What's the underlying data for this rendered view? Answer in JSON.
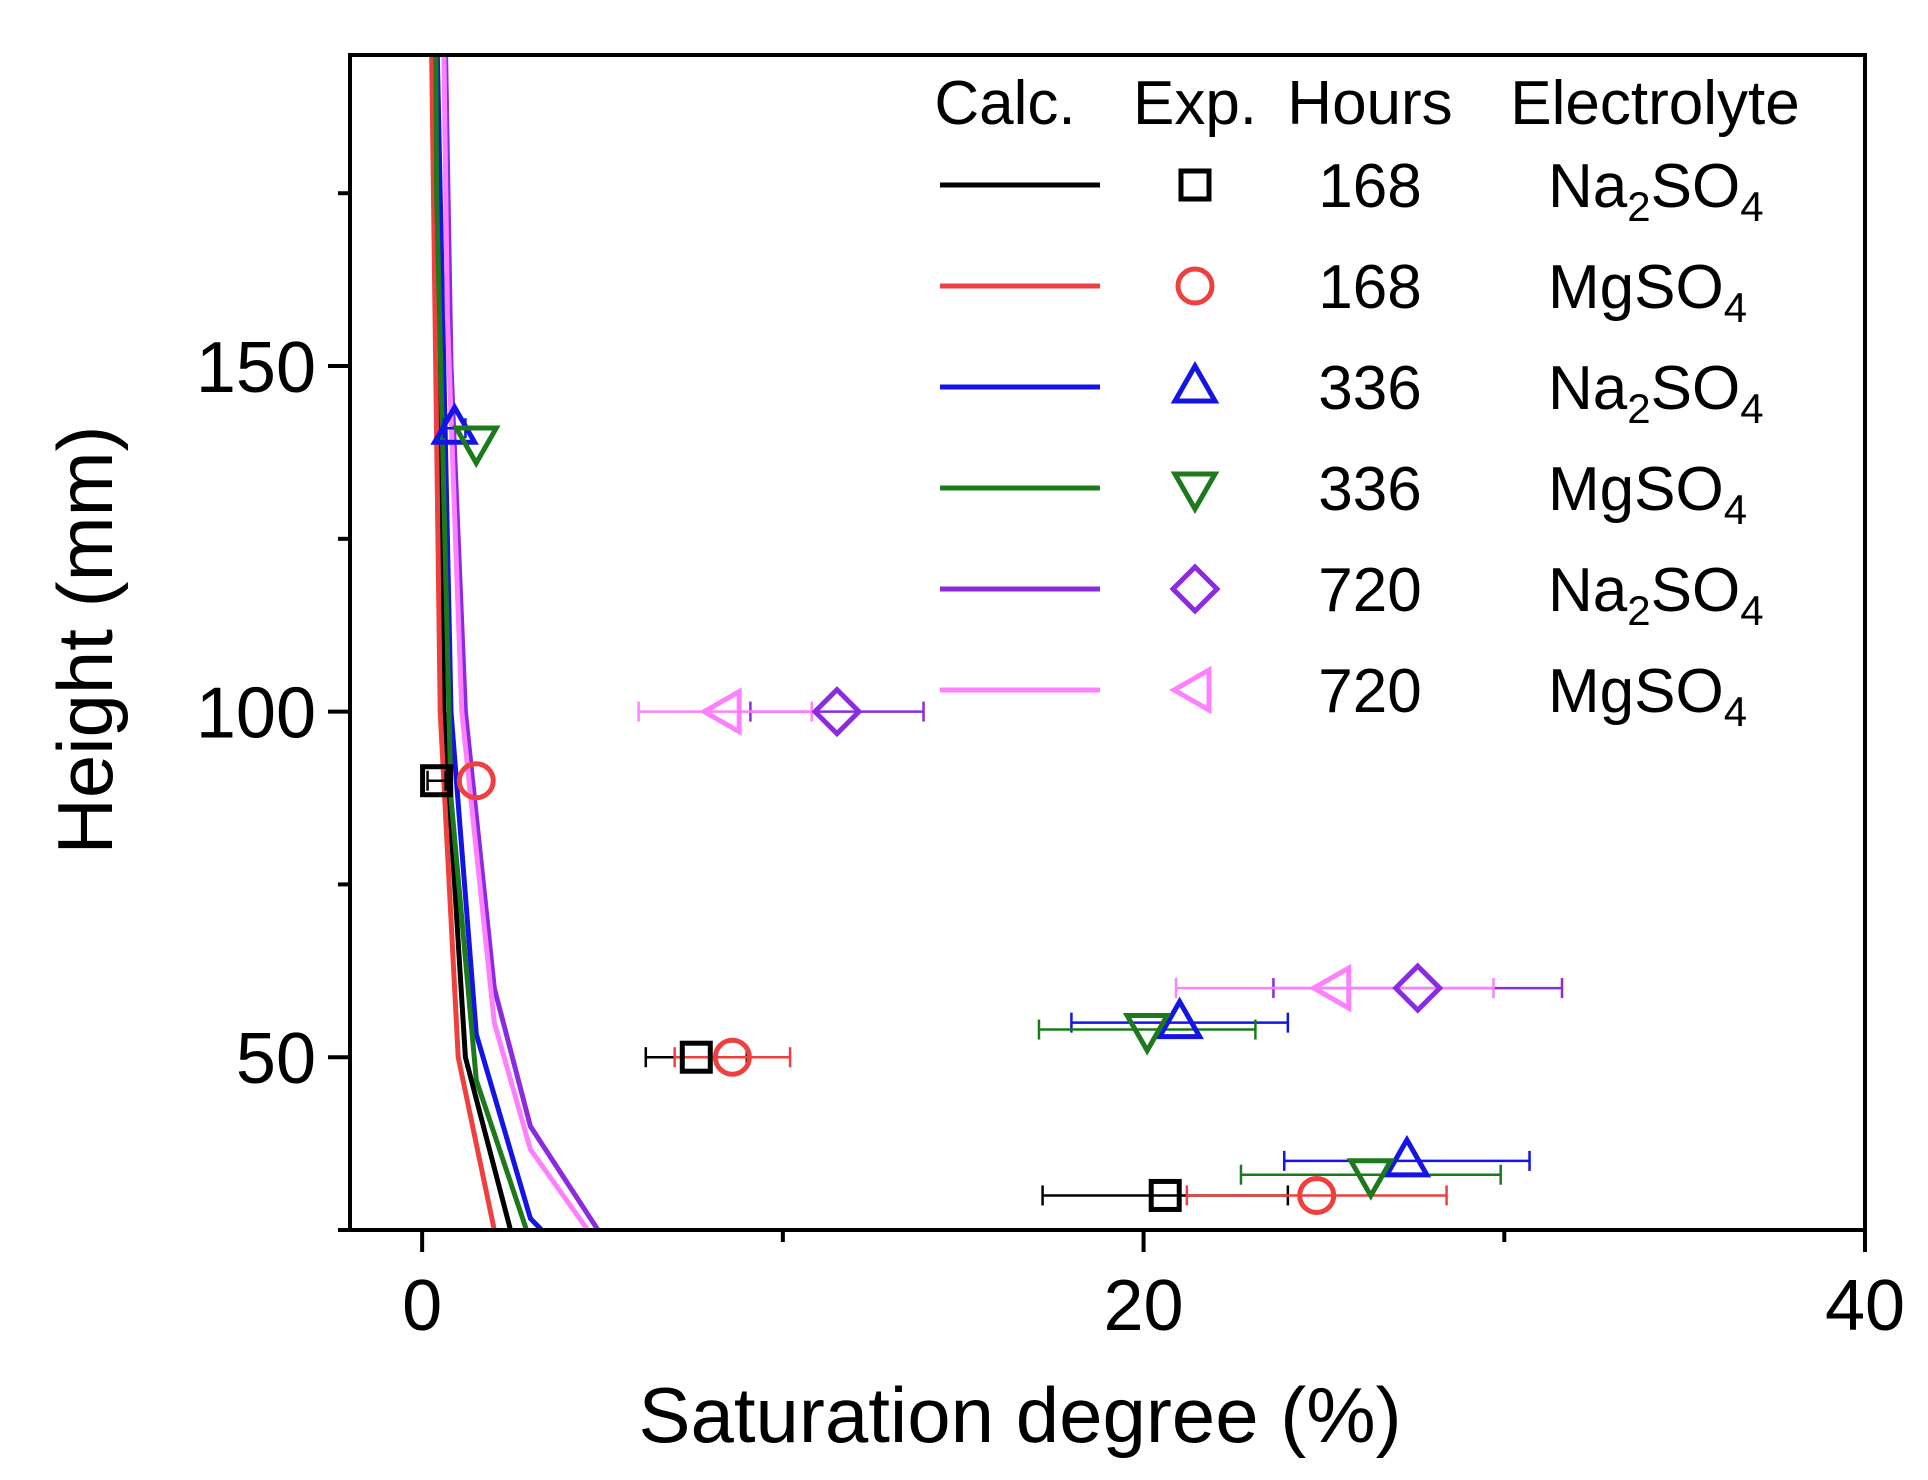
{
  "chart_data": {
    "type": "line",
    "title": "",
    "xlabel": "Saturation degree  (%)",
    "ylabel": "Height  (mm)",
    "xlim": [
      -2,
      40
    ],
    "ylim": [
      25,
      195
    ],
    "x_ticks": [
      0,
      20,
      40
    ],
    "x_tick_labels": [
      "0",
      "20",
      "40"
    ],
    "x_minor_ticks": [
      10,
      30
    ],
    "y_ticks": [
      50,
      100,
      150
    ],
    "y_tick_labels": [
      "50",
      "100",
      "150"
    ],
    "y_minor_ticks": [
      25,
      75,
      125,
      175
    ],
    "grid": false,
    "legend": {
      "position": "top-right",
      "headers": [
        "Calc.",
        "Exp.",
        "Hours",
        "Electrolyte"
      ]
    },
    "series": [
      {
        "name": "168 h Na2SO4",
        "hours": "168",
        "electrolyte": "Na",
        "electrolyte_sub": "2",
        "electrolyte_rest": "SO",
        "electrolyte_sub2": "4",
        "color": "#000000",
        "marker": "square",
        "curve_a": 0.6,
        "curve_x": [
          0.04,
          0.08,
          0.15,
          0.3,
          0.6,
          1.2,
          2.5,
          5,
          8,
          12,
          16,
          20,
          25,
          30,
          35,
          38.0
        ],
        "points": [
          {
            "x": 0.4,
            "y": 90,
            "xerr": 0.25
          },
          {
            "x": 7.6,
            "y": 50,
            "xerr": 1.4
          },
          {
            "x": 20.6,
            "y": 30,
            "xerr": 3.4
          }
        ]
      },
      {
        "name": "168 h MgSO4",
        "hours": "168",
        "electrolyte": "MgSO",
        "electrolyte_sub": "4",
        "electrolyte_rest": "",
        "electrolyte_sub2": "",
        "color": "#ef4040",
        "marker": "circle",
        "curve_a": 0.5,
        "curve_x": [
          0.03,
          0.06,
          0.12,
          0.25,
          0.5,
          1,
          2,
          4,
          7,
          10,
          14,
          18,
          22,
          26,
          30,
          34,
          35.3
        ],
        "points": [
          {
            "x": 1.5,
            "y": 90,
            "xerr": 0
          },
          {
            "x": 8.6,
            "y": 50,
            "xerr": 1.6
          },
          {
            "x": 24.8,
            "y": 30,
            "xerr": 3.6
          }
        ]
      },
      {
        "name": "336 h Na2SO4",
        "hours": "336",
        "electrolyte": "Na",
        "electrolyte_sub": "2",
        "electrolyte_rest": "SO",
        "electrolyte_sub2": "4",
        "color": "#1414e6",
        "marker": "triangle-up",
        "curve_a": 0.8,
        "curve_x": [
          0.1,
          0.2,
          0.4,
          0.8,
          1.5,
          3,
          5,
          8,
          12,
          16,
          20,
          25,
          30,
          35,
          40
        ],
        "points": [
          {
            "x": 0.9,
            "y": 141,
            "xerr": 0.3
          },
          {
            "x": 21.0,
            "y": 55,
            "xerr": 3.0
          },
          {
            "x": 27.3,
            "y": 35,
            "xerr": 3.4
          }
        ]
      },
      {
        "name": "336 h MgSO4",
        "hours": "336",
        "electrolyte": "MgSO",
        "electrolyte_sub": "4",
        "electrolyte_rest": "",
        "electrolyte_sub2": "",
        "color": "#1c7a1c",
        "marker": "triangle-down",
        "curve_a": 0.7,
        "curve_x": [
          0.05,
          0.1,
          0.2,
          0.4,
          0.8,
          1.5,
          3,
          5,
          8,
          12,
          16,
          20,
          25,
          30,
          35,
          40
        ],
        "points": [
          {
            "x": 1.5,
            "y": 139,
            "xerr": 0
          },
          {
            "x": 20.1,
            "y": 54,
            "xerr": 3.0
          },
          {
            "x": 26.3,
            "y": 33,
            "xerr": 3.6
          }
        ]
      },
      {
        "name": "720 h Na2SO4",
        "hours": "720",
        "electrolyte": "Na",
        "electrolyte_sub": "2",
        "electrolyte_rest": "SO",
        "electrolyte_sub2": "4",
        "color": "#8a2be2",
        "marker": "diamond",
        "curve_a": 1.2,
        "curve_x": [
          0.2,
          0.3,
          0.5,
          0.8,
          1.2,
          2,
          3,
          5,
          8,
          12,
          16,
          20,
          25,
          30,
          35,
          40
        ],
        "points": [
          {
            "x": 11.5,
            "y": 100,
            "xerr": 2.4
          },
          {
            "x": 27.6,
            "y": 60,
            "xerr": 4.0
          }
        ]
      },
      {
        "name": "720 h MgSO4",
        "hours": "720",
        "electrolyte": "MgSO",
        "electrolyte_sub": "4",
        "electrolyte_rest": "",
        "electrolyte_sub2": "",
        "color": "#ff80ff",
        "marker": "triangle-left",
        "curve_a": 1.1,
        "curve_x": [
          0.15,
          0.25,
          0.4,
          0.7,
          1.1,
          2,
          3,
          5,
          8,
          12,
          16,
          20,
          25,
          30,
          35,
          40
        ],
        "points": [
          {
            "x": 8.4,
            "y": 100,
            "xerr": 2.4
          },
          {
            "x": 25.3,
            "y": 60,
            "xerr": 4.4
          }
        ]
      }
    ]
  }
}
